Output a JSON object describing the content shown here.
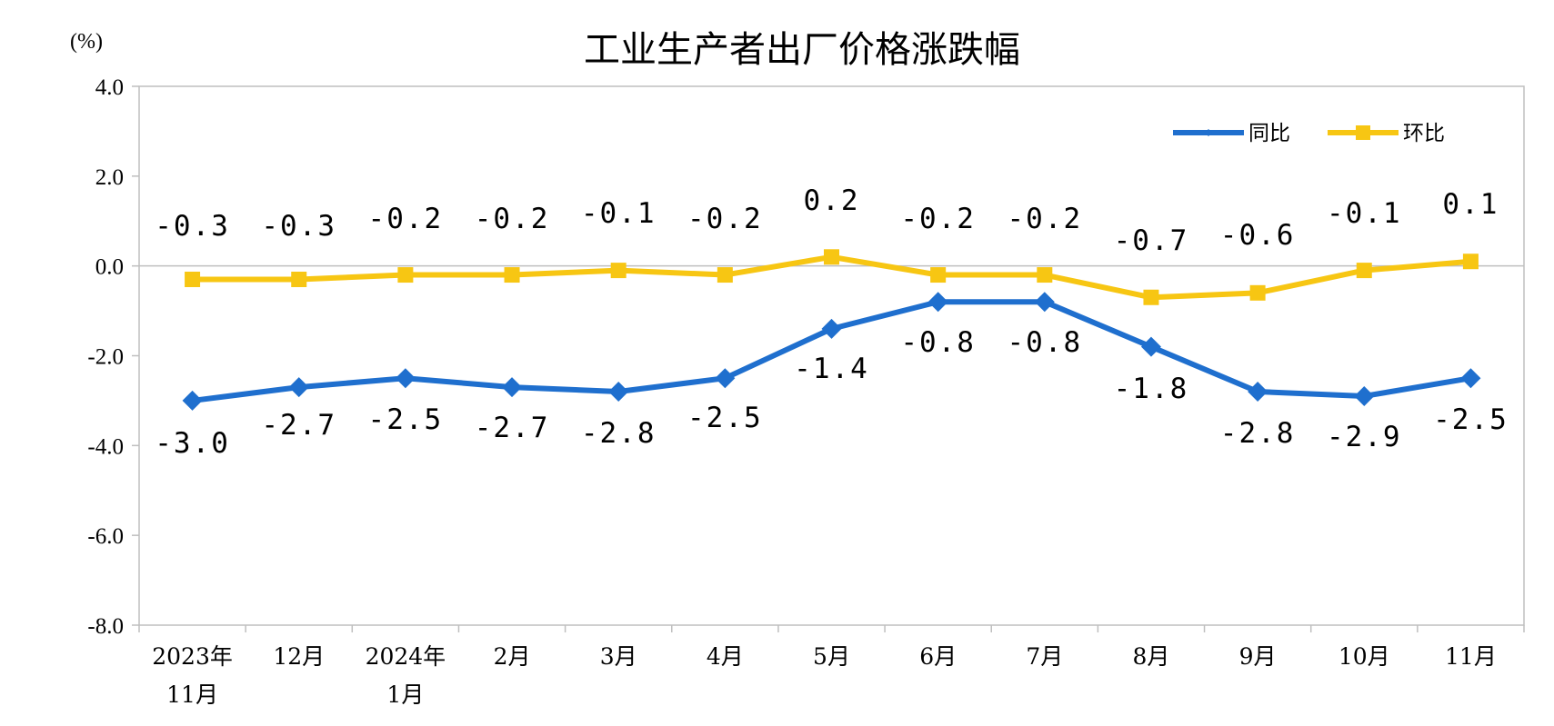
{
  "chart_data": {
    "type": "line",
    "title": "工业生产者出厂价格涨跌幅",
    "unit_label": "(%)",
    "ylim": [
      -8.0,
      4.0
    ],
    "y_ticks": [
      4.0,
      2.0,
      0.0,
      -2.0,
      -4.0,
      -6.0,
      -8.0
    ],
    "y_tick_labels": [
      "4.0",
      "2.0",
      "0.0",
      "-2.0",
      "-4.0",
      "-6.0",
      "-8.0"
    ],
    "categories": [
      [
        "2023年",
        "11月"
      ],
      [
        "12月"
      ],
      [
        "2024年",
        "1月"
      ],
      [
        "2月"
      ],
      [
        "3月"
      ],
      [
        "4月"
      ],
      [
        "5月"
      ],
      [
        "6月"
      ],
      [
        "7月"
      ],
      [
        "8月"
      ],
      [
        "9月"
      ],
      [
        "10月"
      ],
      [
        "11月"
      ]
    ],
    "series": [
      {
        "name": "同比",
        "color": "#1f6fce",
        "marker": "diamond",
        "values": [
          -3.0,
          -2.7,
          -2.5,
          -2.7,
          -2.8,
          -2.5,
          -1.4,
          -0.8,
          -0.8,
          -1.8,
          -2.8,
          -2.9,
          -2.5
        ],
        "labels": [
          "-3.0",
          "-2.7",
          "-2.5",
          "-2.7",
          "-2.8",
          "-2.5",
          "-1.4",
          "-0.8",
          "-0.8",
          "-1.8",
          "-2.8",
          "-2.9",
          "-2.5"
        ]
      },
      {
        "name": "环比",
        "color": "#f7c613",
        "marker": "square",
        "values": [
          -0.3,
          -0.3,
          -0.2,
          -0.2,
          -0.1,
          -0.2,
          0.2,
          -0.2,
          -0.2,
          -0.7,
          -0.6,
          -0.1,
          0.1
        ],
        "labels": [
          "-0.3",
          "-0.3",
          "-0.2",
          "-0.2",
          "-0.1",
          "-0.2",
          "0.2",
          "-0.2",
          "-0.2",
          "-0.7",
          "-0.6",
          "-0.1",
          "0.1"
        ]
      }
    ],
    "grid": false,
    "zero_line": true,
    "legend_position": "top-right"
  }
}
